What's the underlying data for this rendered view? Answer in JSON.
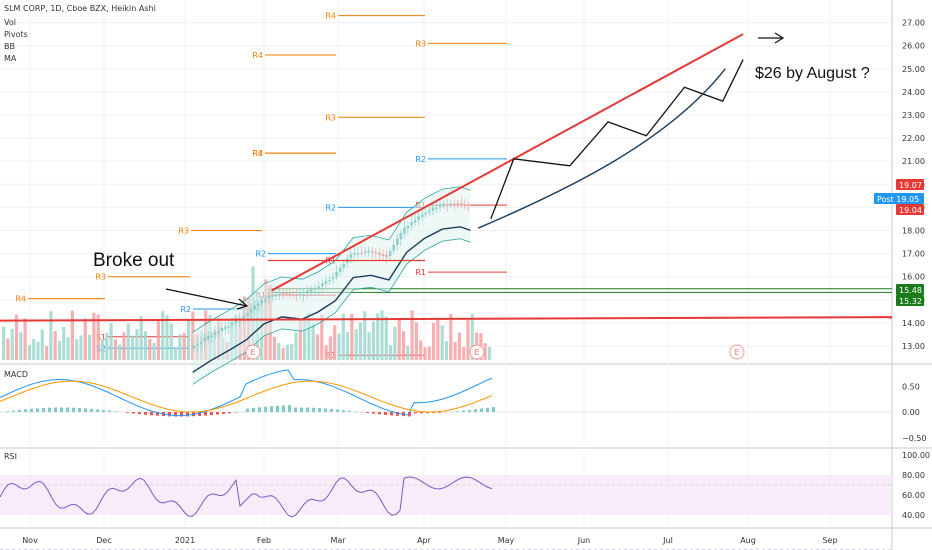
{
  "header": {
    "symbol_line": "SLM CORP, 1D, Cboe BZX, Heikin Ashi",
    "indicators": [
      "Vol",
      "Pivots",
      "BB",
      "MA"
    ]
  },
  "chart_data": [
    {
      "type": "candlestick",
      "title": "SLM CORP, 1D, Cboe BZX, Heikin Ashi",
      "x_ticks": [
        "Nov",
        "Dec",
        "2021",
        "Feb",
        "Mar",
        "Apr",
        "May",
        "Jun",
        "Jul",
        "Aug",
        "Sep"
      ],
      "y_ticks": [
        13.0,
        14.0,
        15.0,
        16.0,
        17.0,
        18.0,
        19.0,
        20.0,
        21.0,
        22.0,
        23.0,
        24.0,
        25.0,
        26.0,
        27.0
      ],
      "ylim": [
        12.3,
        27.5
      ],
      "price_labels": [
        {
          "text": "19.07",
          "color": "#e53935"
        },
        {
          "text": "Post",
          "value": "19.05",
          "color": "#2196f3"
        },
        {
          "text": "19.04",
          "color": "#e53935"
        },
        {
          "text": "15.48",
          "color": "#1b7a1b"
        },
        {
          "text": "15.32",
          "color": "#1b7a1b"
        }
      ],
      "pivot_labels": [
        {
          "text": "R4",
          "color": "#f57c00"
        },
        {
          "text": "R3",
          "color": "#f57c00"
        },
        {
          "text": "R2",
          "color": "#2196f3"
        },
        {
          "text": "R1",
          "color": "#e53935"
        },
        {
          "text": "P",
          "color": "#555555"
        },
        {
          "text": "S1",
          "color": "#e53935"
        },
        {
          "text": "S2",
          "color": "#2196f3"
        }
      ],
      "earnings_markers": [
        "E",
        "E",
        "E"
      ],
      "annotations": [
        "Broke out",
        "$26 by August ?"
      ],
      "series": [
        {
          "name": "Heikin Ashi close",
          "x": [
            "2021-01-04",
            "2021-01-11",
            "2021-01-19",
            "2021-01-25",
            "2021-02-01",
            "2021-02-08",
            "2021-02-16",
            "2021-02-22",
            "2021-03-01",
            "2021-03-08",
            "2021-03-15",
            "2021-03-22",
            "2021-03-29",
            "2021-04-05",
            "2021-04-12",
            "2021-04-19",
            "2021-04-23"
          ],
          "values": [
            12.9,
            13.4,
            13.9,
            14.3,
            15.0,
            15.3,
            15.2,
            15.5,
            16.0,
            17.0,
            17.1,
            16.9,
            18.1,
            18.7,
            19.1,
            19.2,
            19.05
          ]
        },
        {
          "name": "Projected path",
          "x": [
            "2021-05-01",
            "2021-05-10",
            "2021-06-01",
            "2021-06-16",
            "2021-07-01",
            "2021-07-16",
            "2021-07-31",
            "2021-08-08"
          ],
          "values": [
            18.5,
            21.1,
            20.8,
            22.7,
            22.1,
            24.2,
            23.6,
            25.4
          ]
        }
      ]
    },
    {
      "type": "line",
      "title": "MACD",
      "y_ticks": [
        -0.5,
        0.0,
        0.5
      ],
      "ylim": [
        -0.6,
        1.0
      ]
    },
    {
      "type": "line",
      "title": "RSI",
      "y_ticks": [
        40.0,
        60.0,
        80.0,
        100.0
      ],
      "ylim": [
        25,
        100
      ],
      "band": [
        30,
        70
      ]
    }
  ]
}
